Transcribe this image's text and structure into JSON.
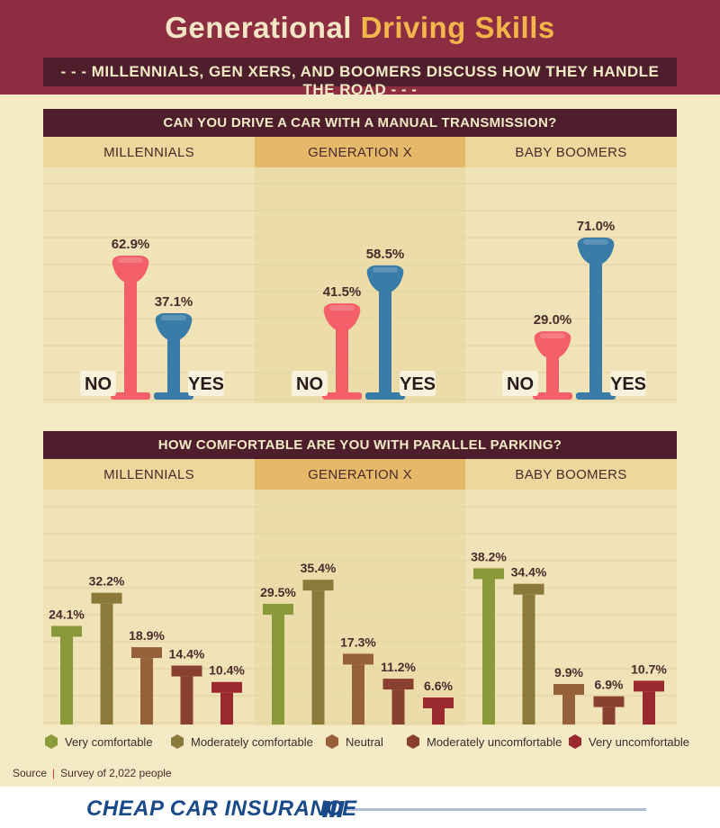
{
  "header": {
    "title_part1": "Generational",
    "title_part2": "Driving Skills",
    "subtitle": "- - -  MILLENNIALS, GEN XERS, AND BOOMERS DISCUSS HOW THEY HANDLE THE ROAD  - - -"
  },
  "colors": {
    "header_bg": "#8d2d42",
    "dark_band": "#4e1e2c",
    "background": "#f4ebc6",
    "no": "#f4606a",
    "yes": "#3a7ca8",
    "very_comfortable": "#8a9a3a",
    "moderately_comfortable": "#8c7a3a",
    "neutral": "#96603a",
    "moderately_uncomfortable": "#8a4030",
    "very_uncomfortable": "#9a2a30"
  },
  "chart_data": [
    {
      "type": "bar",
      "title": "CAN YOU DRIVE A CAR WITH A MANUAL TRANSMISSION?",
      "categories": [
        "MILLENNIALS",
        "GENERATION X",
        "BABY BOOMERS"
      ],
      "series": [
        {
          "name": "NO",
          "values": [
            62.9,
            41.5,
            29.0
          ],
          "labels": [
            "62.9%",
            "41.5%",
            "29.0%"
          ]
        },
        {
          "name": "YES",
          "values": [
            37.1,
            58.5,
            71.0
          ],
          "labels": [
            "37.1%",
            "58.5%",
            "71.0%"
          ]
        }
      ],
      "ylim": [
        0,
        100
      ]
    },
    {
      "type": "bar",
      "title": "HOW COMFORTABLE ARE YOU WITH PARALLEL PARKING?",
      "categories": [
        "MILLENNIALS",
        "GENERATION X",
        "BABY BOOMERS"
      ],
      "series": [
        {
          "name": "Very comfortable",
          "values": [
            24.1,
            29.5,
            38.2
          ],
          "labels": [
            "24.1%",
            "29.5%",
            "38.2%"
          ]
        },
        {
          "name": "Moderately comfortable",
          "values": [
            32.2,
            35.4,
            34.4
          ],
          "labels": [
            "32.2%",
            "35.4%",
            "34.4%"
          ]
        },
        {
          "name": "Neutral",
          "values": [
            18.9,
            17.3,
            9.9
          ],
          "labels": [
            "18.9%",
            "17.3%",
            "9.9%"
          ]
        },
        {
          "name": "Moderately uncomfortable",
          "values": [
            14.4,
            11.2,
            6.9
          ],
          "labels": [
            "14.4%",
            "11.2%",
            "6.9%"
          ]
        },
        {
          "name": "Very uncomfortable",
          "values": [
            10.4,
            6.6,
            10.7
          ],
          "labels": [
            "10.4%",
            "6.6%",
            "10.7%"
          ]
        }
      ],
      "ylim": [
        0,
        50
      ],
      "legend": "bottom"
    }
  ],
  "source": {
    "label": "Source",
    "text": "Survey of 2,022 people"
  },
  "footer": {
    "logo": "CHEAP CAR INSURANCE"
  }
}
